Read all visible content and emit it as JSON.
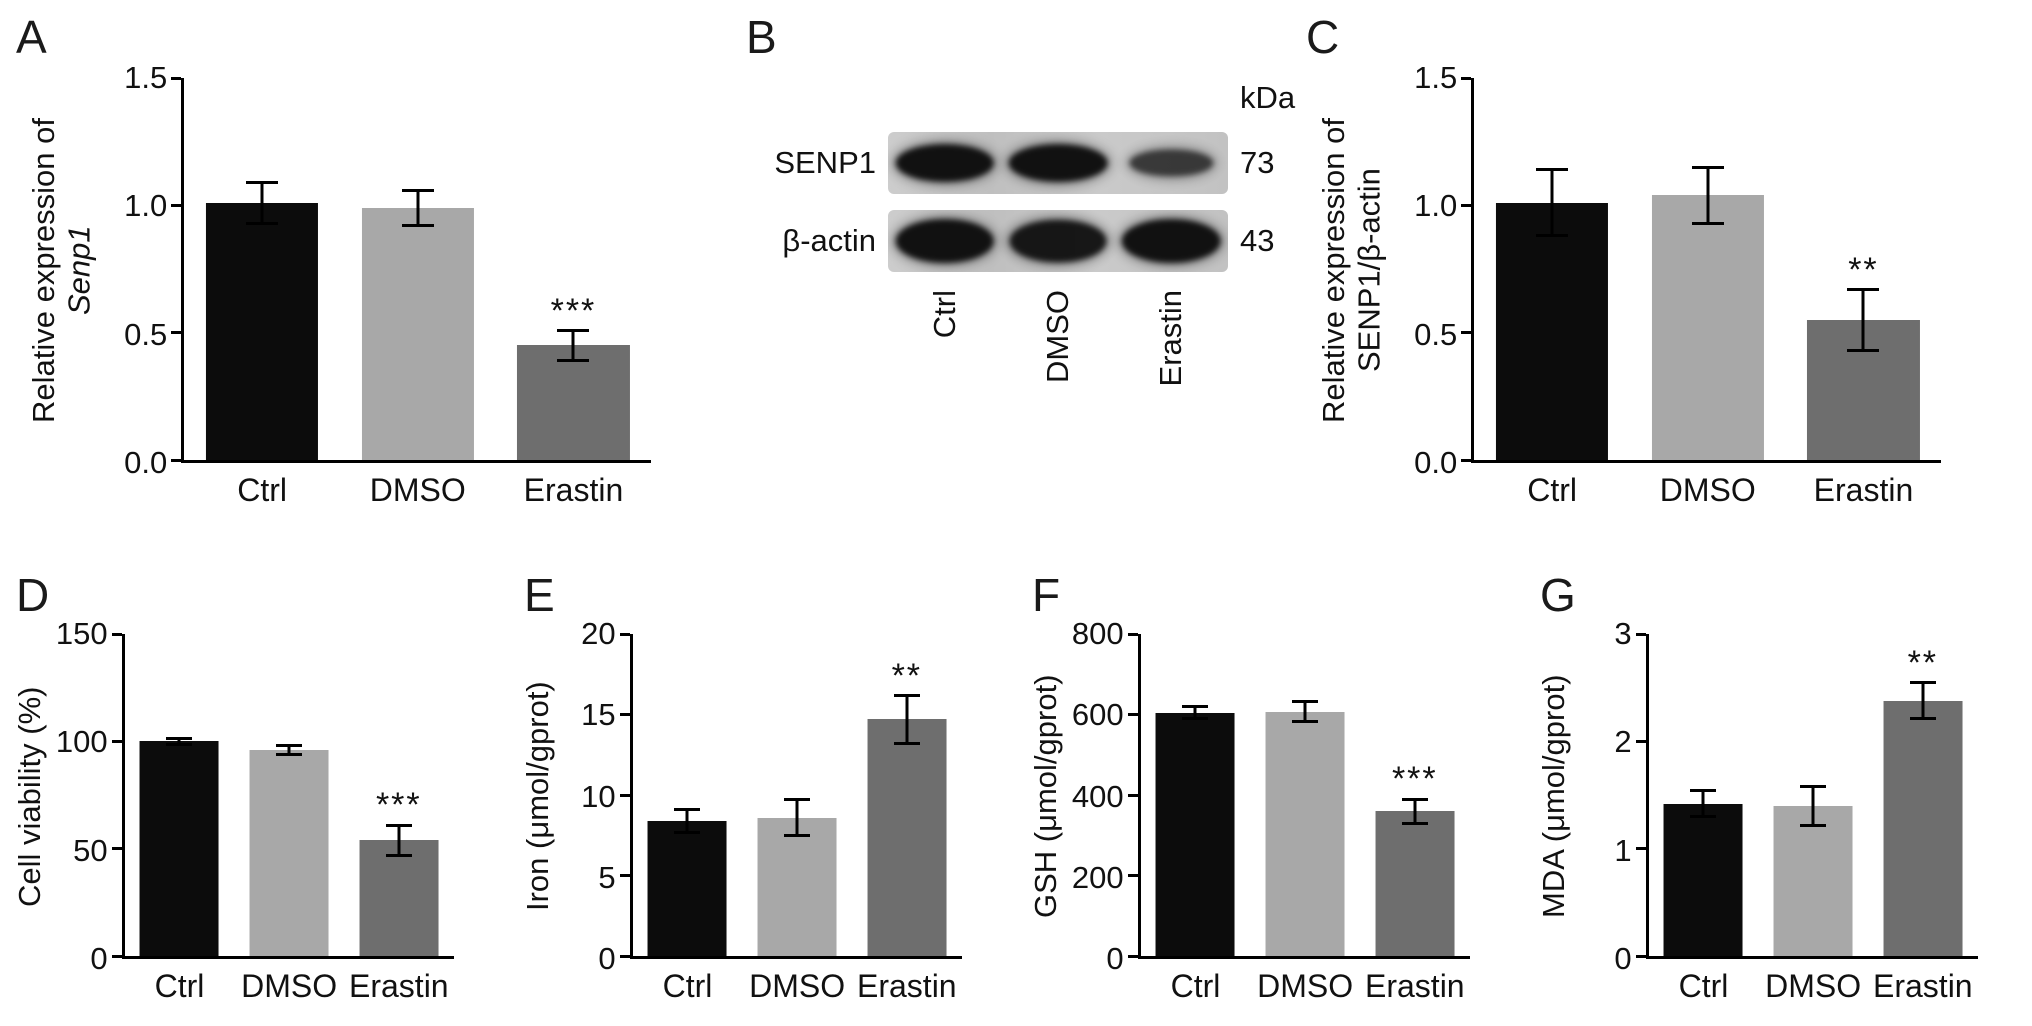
{
  "colors": {
    "background": "#ffffff",
    "axis": "#000000",
    "bar_ctrl": "#0c0c0c",
    "bar_dmso": "#a8a8a8",
    "bar_erastin": "#6e6e6e"
  },
  "chart_data": [
    {
      "panel": "A",
      "type": "bar",
      "ylabel_lines": [
        "Relative expression of",
        "Senp1"
      ],
      "ylabel_italic_line": 1,
      "categories": [
        "Ctrl",
        "DMSO",
        "Erastin"
      ],
      "values": [
        1.01,
        0.99,
        0.45
      ],
      "errors": [
        0.08,
        0.07,
        0.06
      ],
      "significance": {
        "2": "***"
      },
      "ylim": [
        0,
        1.5
      ],
      "yticks": [
        0,
        0.5,
        1,
        1.5
      ],
      "ytick_labels": [
        "0.0",
        "0.5",
        "1.0",
        "1.5"
      ],
      "bar_colors": [
        "#0c0c0c",
        "#a8a8a8",
        "#6e6e6e"
      ]
    },
    {
      "panel": "C",
      "type": "bar",
      "ylabel_lines": [
        "Relative expression of",
        "SENP1/β-actin"
      ],
      "ylabel_italic_line": -1,
      "categories": [
        "Ctrl",
        "DMSO",
        "Erastin"
      ],
      "values": [
        1.01,
        1.04,
        0.55
      ],
      "errors": [
        0.13,
        0.11,
        0.12
      ],
      "significance": {
        "2": "**"
      },
      "ylim": [
        0,
        1.5
      ],
      "yticks": [
        0,
        0.5,
        1,
        1.5
      ],
      "ytick_labels": [
        "0.0",
        "0.5",
        "1.0",
        "1.5"
      ],
      "bar_colors": [
        "#0c0c0c",
        "#a8a8a8",
        "#6e6e6e"
      ]
    },
    {
      "panel": "D",
      "type": "bar",
      "ylabel_lines": [
        "Cell viability (%)"
      ],
      "ylabel_italic_line": -1,
      "categories": [
        "Ctrl",
        "DMSO",
        "Erastin"
      ],
      "values": [
        100,
        96,
        54
      ],
      "errors": [
        1.5,
        2,
        7
      ],
      "significance": {
        "2": "***"
      },
      "ylim": [
        0,
        150
      ],
      "yticks": [
        0,
        50,
        100,
        150
      ],
      "ytick_labels": [
        "0",
        "50",
        "100",
        "150"
      ],
      "bar_colors": [
        "#0c0c0c",
        "#a8a8a8",
        "#6e6e6e"
      ]
    },
    {
      "panel": "E",
      "type": "bar",
      "ylabel_lines": [
        "Iron (μmol/gprot)"
      ],
      "ylabel_italic_line": -1,
      "categories": [
        "Ctrl",
        "DMSO",
        "Erastin"
      ],
      "values": [
        8.4,
        8.6,
        14.7
      ],
      "errors": [
        0.7,
        1.1,
        1.5
      ],
      "significance": {
        "2": "**"
      },
      "ylim": [
        0,
        20
      ],
      "yticks": [
        0,
        5,
        10,
        15,
        20
      ],
      "ytick_labels": [
        "0",
        "5",
        "10",
        "15",
        "20"
      ],
      "bar_colors": [
        "#0c0c0c",
        "#a8a8a8",
        "#6e6e6e"
      ]
    },
    {
      "panel": "F",
      "type": "bar",
      "ylabel_lines": [
        "GSH (μmol/gprot)"
      ],
      "ylabel_italic_line": -1,
      "categories": [
        "Ctrl",
        "DMSO",
        "Erastin"
      ],
      "values": [
        605,
        607,
        360
      ],
      "errors": [
        15,
        25,
        30
      ],
      "significance": {
        "2": "***"
      },
      "ylim": [
        0,
        800
      ],
      "yticks": [
        0,
        200,
        400,
        600,
        800
      ],
      "ytick_labels": [
        "0",
        "200",
        "400",
        "600",
        "800"
      ],
      "bar_colors": [
        "#0c0c0c",
        "#a8a8a8",
        "#6e6e6e"
      ]
    },
    {
      "panel": "G",
      "type": "bar",
      "ylabel_lines": [
        "MDA (μmol/gprot)"
      ],
      "ylabel_italic_line": -1,
      "categories": [
        "Ctrl",
        "DMSO",
        "Erastin"
      ],
      "values": [
        1.42,
        1.4,
        2.38
      ],
      "errors": [
        0.12,
        0.18,
        0.17
      ],
      "significance": {
        "2": "**"
      },
      "ylim": [
        0,
        3
      ],
      "yticks": [
        0,
        1,
        2,
        3
      ],
      "ytick_labels": [
        "0",
        "1",
        "2",
        "3"
      ],
      "bar_colors": [
        "#0c0c0c",
        "#a8a8a8",
        "#6e6e6e"
      ]
    }
  ],
  "blot": {
    "panel": "B",
    "unit_label": "kDa",
    "lanes": [
      "Ctrl",
      "DMSO",
      "Erastin"
    ],
    "rows": [
      {
        "protein": "SENP1",
        "kda": "73",
        "band_strength": [
          1,
          1,
          0.55
        ]
      },
      {
        "protein": "β-actin",
        "kda": "43",
        "band_strength": [
          1,
          0.95,
          1
        ]
      }
    ]
  }
}
